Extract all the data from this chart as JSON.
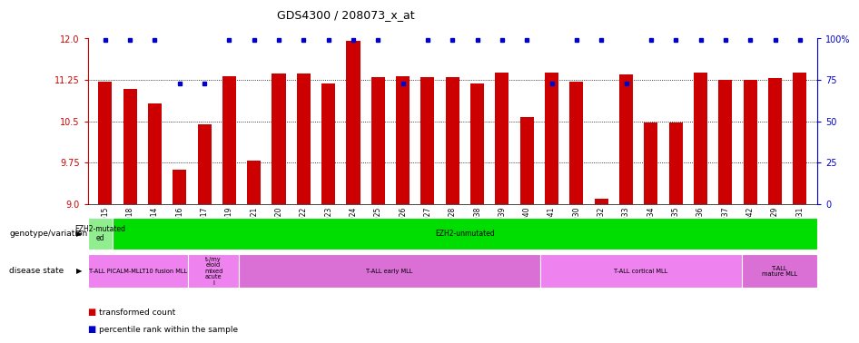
{
  "title": "GDS4300 / 208073_x_at",
  "samples": [
    "GSM759015",
    "GSM759018",
    "GSM759014",
    "GSM759016",
    "GSM759017",
    "GSM759019",
    "GSM759021",
    "GSM759020",
    "GSM759022",
    "GSM759023",
    "GSM759024",
    "GSM759025",
    "GSM759026",
    "GSM759027",
    "GSM759028",
    "GSM759038",
    "GSM759039",
    "GSM759040",
    "GSM759041",
    "GSM759030",
    "GSM759032",
    "GSM759033",
    "GSM759034",
    "GSM759035",
    "GSM759036",
    "GSM759037",
    "GSM759042",
    "GSM759029",
    "GSM759031"
  ],
  "bar_values": [
    11.22,
    11.08,
    10.82,
    9.62,
    10.45,
    11.32,
    9.78,
    11.37,
    11.37,
    11.18,
    11.95,
    11.3,
    11.32,
    11.3,
    11.3,
    11.18,
    11.38,
    10.58,
    11.38,
    11.22,
    9.1,
    11.35,
    10.48,
    10.48,
    11.38,
    11.25,
    11.25,
    11.28,
    11.38
  ],
  "percentile_values": [
    100,
    100,
    100,
    75,
    75,
    100,
    100,
    100,
    100,
    100,
    100,
    100,
    75,
    100,
    100,
    100,
    100,
    100,
    75,
    100,
    100,
    75,
    100,
    100,
    100,
    100,
    100,
    100,
    100
  ],
  "bar_color": "#cc0000",
  "percentile_color": "#0000cc",
  "ylim_left": [
    9.0,
    12.0
  ],
  "ylim_right": [
    0,
    100
  ],
  "yticks_left": [
    9.0,
    9.75,
    10.5,
    11.25,
    12.0
  ],
  "yticks_right": [
    0,
    25,
    50,
    75,
    100
  ],
  "hline_values": [
    9.75,
    10.5,
    11.25
  ],
  "genotype_regions": [
    {
      "label": "EZH2-mutated\ned",
      "start": 0,
      "end": 1,
      "color": "#90ee90"
    },
    {
      "label": "EZH2-unmutated",
      "start": 1,
      "end": 29,
      "color": "#00dd00"
    }
  ],
  "disease_regions": [
    {
      "label": "T-ALL PICALM-MLLT10 fusion MLL",
      "start": 0,
      "end": 4,
      "color": "#ee82ee"
    },
    {
      "label": "t-/my\neloid\nmixed\nacute\nl",
      "start": 4,
      "end": 6,
      "color": "#ee82ee"
    },
    {
      "label": "T-ALL early MLL",
      "start": 6,
      "end": 18,
      "color": "#da70d6"
    },
    {
      "label": "T-ALL cortical MLL",
      "start": 18,
      "end": 26,
      "color": "#ee82ee"
    },
    {
      "label": "T-ALL\nmature MLL",
      "start": 26,
      "end": 29,
      "color": "#da70d6"
    }
  ]
}
